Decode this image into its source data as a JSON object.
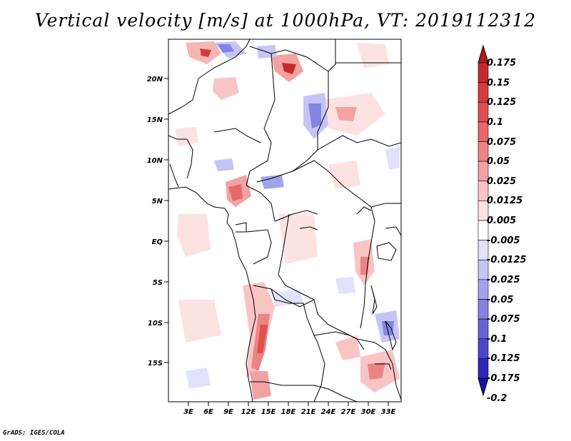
{
  "title": "Vertical velocity [m/s] at 1000hPa, VT: 2019112312",
  "footer": "GrADS: IGES/COLA",
  "map": {
    "lat_labels": [
      "20N",
      "15N",
      "10N",
      "5N",
      "EQ",
      "5S",
      "10S",
      "15S"
    ],
    "lon_labels": [
      "3E",
      "6E",
      "9E",
      "12E",
      "15E",
      "18E",
      "21E",
      "24E",
      "27E",
      "30E",
      "33E"
    ]
  },
  "colorbar": {
    "labels": [
      "0.175",
      "0.15",
      "0.125",
      "0.1",
      "0.075",
      "0.05",
      "0.025",
      "0.0125",
      "0.005",
      "-0.005",
      "-0.0125",
      "-0.025",
      "-0.05",
      "-0.075",
      "-0.1",
      "-0.125",
      "-0.175",
      "-0.2"
    ],
    "colors": [
      "#b01a1a",
      "#c42a2a",
      "#d43c3c",
      "#e05050",
      "#e66868",
      "#ec8484",
      "#f2a2a2",
      "#f8c4c4",
      "#fde2e2",
      "#ffffff",
      "#e2e2fd",
      "#c4c4f6",
      "#a2a2ec",
      "#8484e2",
      "#6464d6",
      "#4848c8",
      "#2a2ab8",
      "#1414a0"
    ]
  }
}
